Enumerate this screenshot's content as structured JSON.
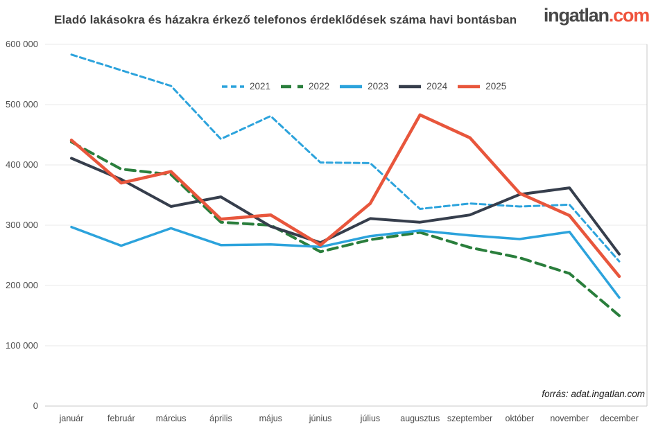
{
  "header": {
    "logo_name": "ingatlan",
    "logo_tld": ".com"
  },
  "footer": {
    "source": "forrás: adat.ingatlan.com"
  },
  "colors": {
    "accent_red": "#ef523b",
    "title_text": "#3f3f3f",
    "axis_text": "#4a4a4a",
    "gridline": "#e8e8e8",
    "axis_line": "#c8c8c8"
  },
  "chart_data": {
    "type": "line",
    "title": "Eladó lakásokra és házakra érkező telefonos érdeklődések száma havi bontásban",
    "xlabel": "",
    "ylabel": "",
    "categories": [
      "január",
      "február",
      "március",
      "április",
      "május",
      "június",
      "július",
      "augusztus",
      "szeptember",
      "október",
      "november",
      "december"
    ],
    "y_ticks": [
      {
        "label": "600 000",
        "value": 600000
      },
      {
        "label": "500 000",
        "value": 500000
      },
      {
        "label": "400 000",
        "value": 400000
      },
      {
        "label": "300 000",
        "value": 300000
      },
      {
        "label": "200 000",
        "value": 200000
      },
      {
        "label": "100 000",
        "value": 100000
      },
      {
        "label": "0",
        "value": 0
      }
    ],
    "ylim": [
      0,
      600000
    ],
    "grid": true,
    "legend_position": "top-center",
    "series": [
      {
        "name": "2021",
        "color": "#2ca3dc",
        "line_style": "dashed",
        "dash": "8 5",
        "width": 3,
        "values": [
          583000,
          557000,
          531000,
          443000,
          481000,
          404000,
          403000,
          327000,
          336000,
          331000,
          334000,
          240000
        ]
      },
      {
        "name": "2022",
        "color": "#2a7e3c",
        "line_style": "dashed",
        "dash": "14 8",
        "width": 4,
        "values": [
          438000,
          393000,
          384000,
          305000,
          300000,
          256000,
          276000,
          288000,
          263000,
          246000,
          220000,
          150000
        ]
      },
      {
        "name": "2023",
        "color": "#2ca3dc",
        "line_style": "solid",
        "dash": null,
        "width": 3.5,
        "values": [
          297000,
          266000,
          295000,
          267000,
          268000,
          264000,
          282000,
          291000,
          283000,
          277000,
          289000,
          180000
        ]
      },
      {
        "name": "2024",
        "color": "#363e4c",
        "line_style": "solid",
        "dash": null,
        "width": 4,
        "values": [
          411000,
          376000,
          331000,
          347000,
          298000,
          271000,
          311000,
          305000,
          317000,
          351000,
          362000,
          252000
        ]
      },
      {
        "name": "2025",
        "color": "#e8563c",
        "line_style": "solid",
        "dash": null,
        "width": 4.5,
        "values": [
          441000,
          370000,
          389000,
          310000,
          317000,
          267000,
          336000,
          483000,
          445000,
          353000,
          316000,
          215000
        ]
      }
    ]
  }
}
